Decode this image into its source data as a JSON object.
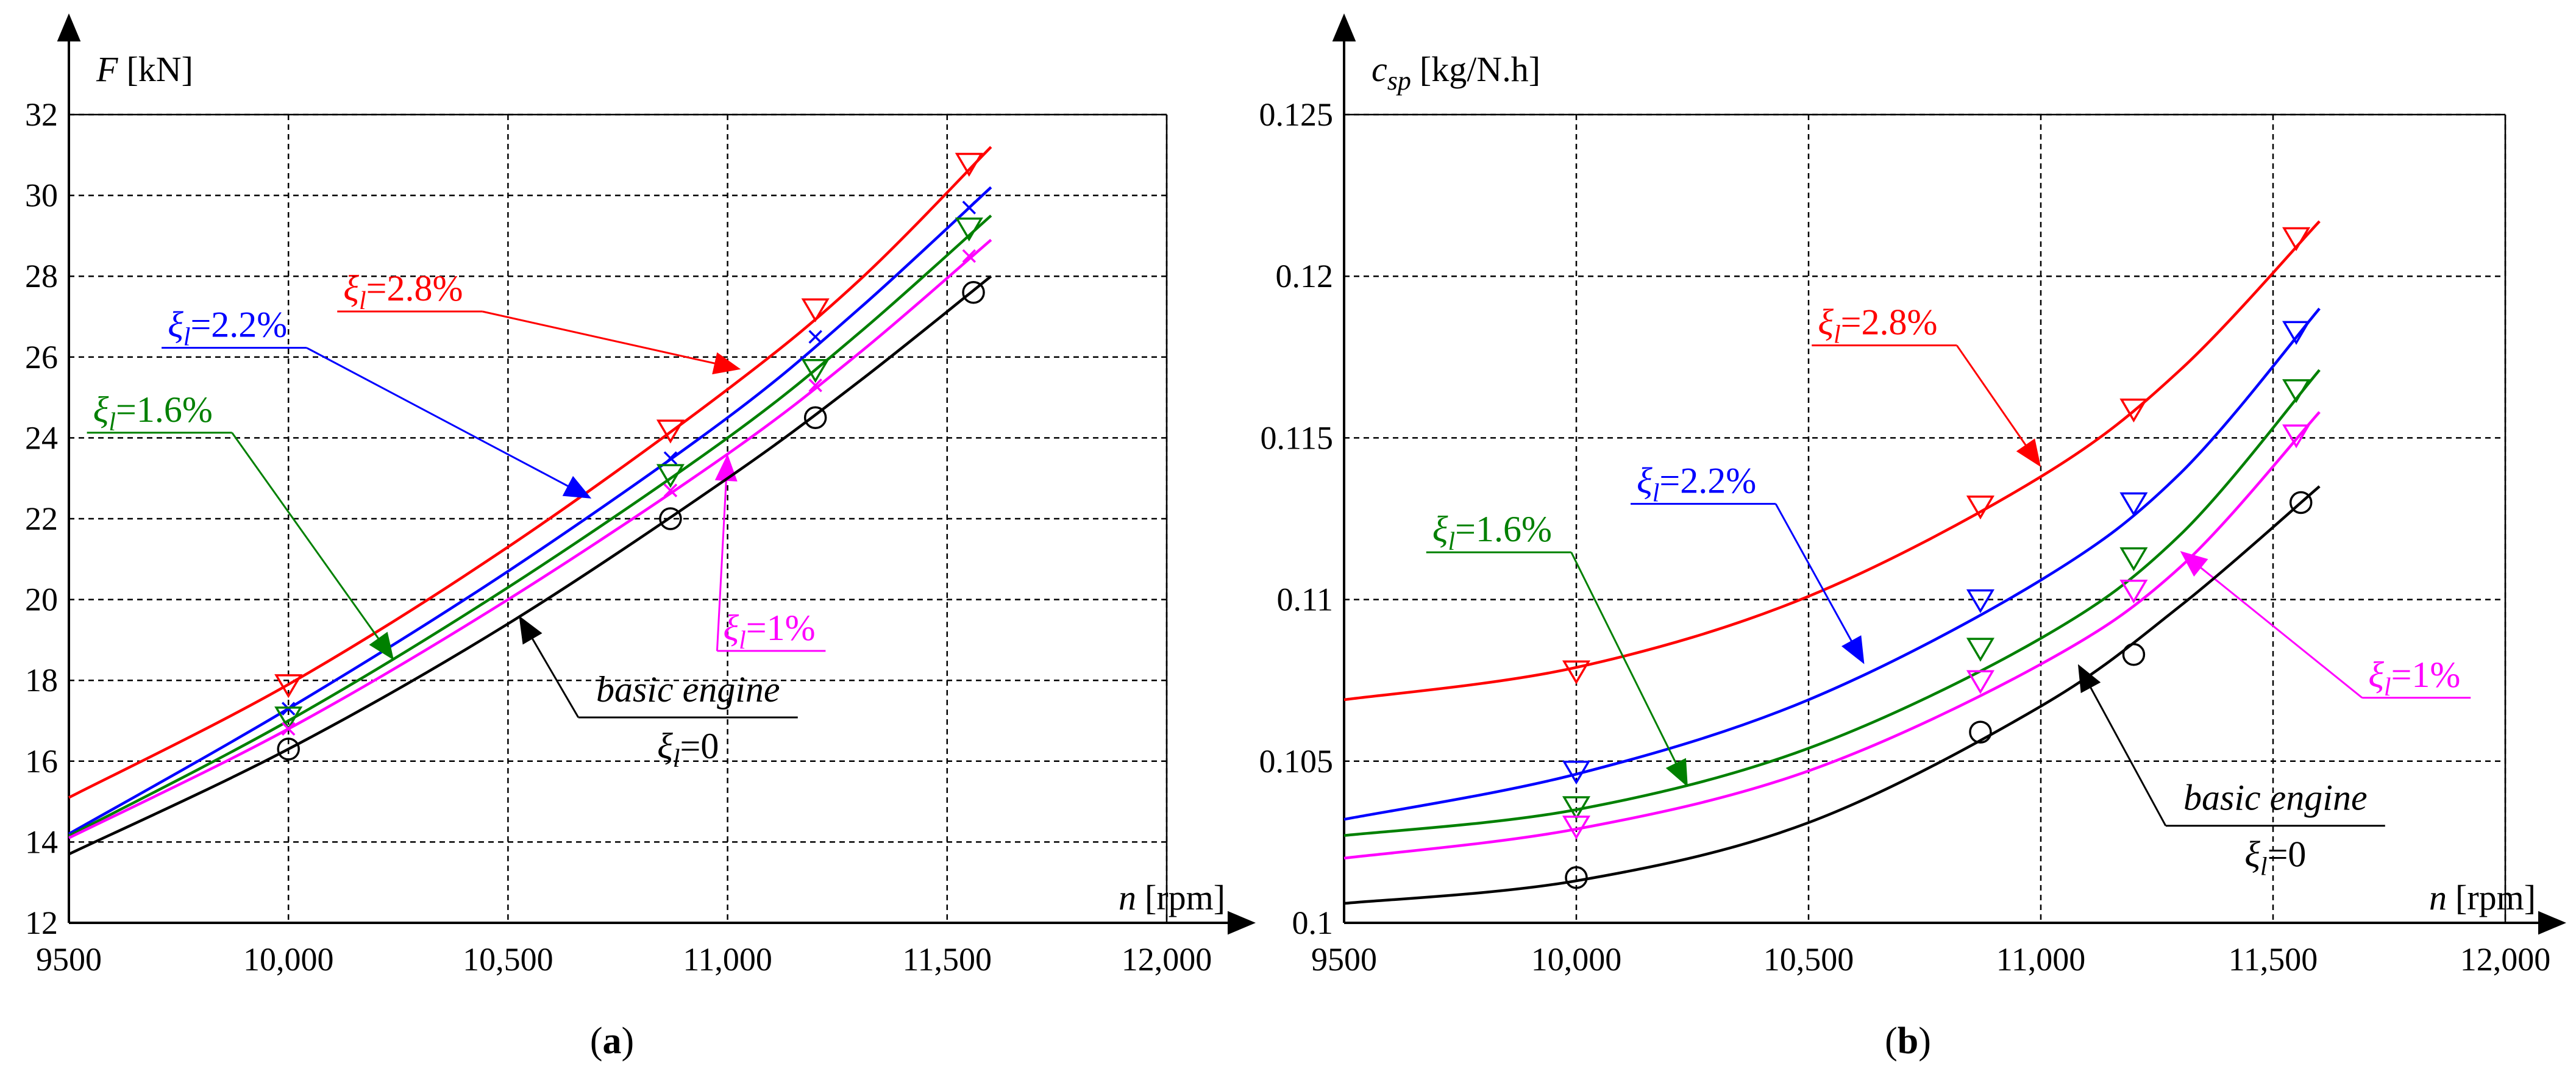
{
  "captions": [
    "(a)",
    "(b)"
  ],
  "chart_data": [
    {
      "type": "line",
      "panel": "a",
      "ylabel_symbol": "F",
      "ylabel_unit": "[kN]",
      "xlabel_symbol": "n",
      "xlabel_unit": "[rpm]",
      "x_ticks": [
        "9500",
        "10,000",
        "10,500",
        "11,000",
        "11,500",
        "12,000"
      ],
      "x_tick_values": [
        9500,
        10000,
        10500,
        11000,
        11500,
        12000
      ],
      "y_ticks": [
        "12",
        "14",
        "16",
        "18",
        "20",
        "22",
        "24",
        "26",
        "28",
        "30",
        "32"
      ],
      "y_tick_values": [
        12,
        14,
        16,
        18,
        20,
        22,
        24,
        26,
        28,
        30,
        32
      ],
      "xlim": [
        9500,
        12000
      ],
      "ylim": [
        12,
        32
      ],
      "grid": true,
      "series": [
        {
          "name": "ξl=2.8%",
          "sym": "ξ",
          "sub": "l",
          "val": "=2.8%",
          "color": "#ff0000",
          "marker": "triangle-down",
          "x": [
            9500,
            10000,
            10500,
            11000,
            11300,
            11600
          ],
          "y": [
            15.1,
            17.9,
            21.3,
            25.2,
            27.9,
            31.2
          ],
          "mx": [
            10000,
            10870,
            11200,
            11550
          ],
          "my": [
            17.9,
            24.2,
            27.2,
            30.8
          ],
          "label_at": [
            10125,
            27.4
          ],
          "arrow_to": [
            11030,
            25.7
          ],
          "leader": "right"
        },
        {
          "name": "ξl=2.2%",
          "sym": "ξ",
          "sub": "l",
          "val": "=2.2%",
          "color": "#0000ff",
          "marker": "cross",
          "x": [
            9500,
            10000,
            10500,
            11000,
            11300,
            11600
          ],
          "y": [
            14.2,
            17.3,
            20.7,
            24.5,
            27.2,
            30.2
          ],
          "mx": [
            10000,
            10870,
            11200,
            11550
          ],
          "my": [
            17.3,
            23.5,
            26.5,
            29.7
          ],
          "label_at": [
            9725,
            26.5
          ],
          "arrow_to": [
            10690,
            22.5
          ],
          "leader": "right"
        },
        {
          "name": "ξl=1.6%",
          "sym": "ξ",
          "sub": "l",
          "val": "=1.6%",
          "color": "#008000",
          "marker": "triangle-down",
          "x": [
            9500,
            10000,
            10500,
            11000,
            11300,
            11600
          ],
          "y": [
            14.15,
            17.0,
            20.3,
            24.0,
            26.6,
            29.5
          ],
          "mx": [
            10000,
            10870,
            11200,
            11550
          ],
          "my": [
            17.1,
            23.1,
            25.7,
            29.2
          ],
          "label_at": [
            9555,
            24.4
          ],
          "arrow_to": [
            10240,
            18.5
          ],
          "leader": "right"
        },
        {
          "name": "ξl=1%",
          "sym": "ξ",
          "sub": "l",
          "val": "=1%",
          "color": "#ff00ff",
          "marker": "cross",
          "x": [
            9500,
            10000,
            10500,
            11000,
            11300,
            11600
          ],
          "y": [
            14.1,
            16.8,
            20.0,
            23.6,
            26.1,
            28.9
          ],
          "mx": [
            10000,
            10870,
            11200,
            11550
          ],
          "my": [
            16.8,
            22.7,
            25.3,
            28.5
          ],
          "label_at": [
            10990,
            19.0
          ],
          "arrow_to": [
            11000,
            23.6
          ],
          "leader": "left"
        },
        {
          "name": "basic engine ξl=0",
          "sym": "ξ",
          "sub": "l",
          "val": "=0",
          "label_pre": "basic engine",
          "color": "#000000",
          "marker": "circle",
          "x": [
            9500,
            10000,
            10500,
            11000,
            11300,
            11600
          ],
          "y": [
            13.7,
            16.3,
            19.4,
            23.0,
            25.4,
            28.0
          ],
          "mx": [
            10000,
            10870,
            11200,
            11560
          ],
          "my": [
            16.3,
            22.0,
            24.5,
            27.6
          ],
          "label_at": [
            10910,
            16.6
          ],
          "arrow_to": [
            10525,
            19.6
          ],
          "leader": "left"
        }
      ]
    },
    {
      "type": "line",
      "panel": "b",
      "ylabel_symbol": "c",
      "ylabel_sub": "sp",
      "ylabel_unit": "[kg/N.h]",
      "xlabel_symbol": "n",
      "xlabel_unit": "[rpm]",
      "x_ticks": [
        "9500",
        "10,000",
        "10,500",
        "11,000",
        "11,500",
        "12,000"
      ],
      "x_tick_values": [
        9500,
        10000,
        10500,
        11000,
        11500,
        12000
      ],
      "y_ticks": [
        "0.1",
        "0.105",
        "0.11",
        "0.115",
        "0.12",
        "0.125"
      ],
      "y_tick_values": [
        0.1,
        0.105,
        0.11,
        0.115,
        0.12,
        0.125
      ],
      "xlim": [
        9500,
        12000
      ],
      "ylim": [
        0.1,
        0.125
      ],
      "grid": true,
      "series": [
        {
          "name": "ξl=2.8%",
          "sym": "ξ",
          "sub": "l",
          "val": "=2.8%",
          "color": "#ff0000",
          "marker": "triangle-down",
          "x": [
            9500,
            10000,
            10500,
            11000,
            11300,
            11600
          ],
          "y": [
            0.1069,
            0.1079,
            0.1101,
            0.1138,
            0.1171,
            0.1217
          ],
          "mx": [
            10000,
            10870,
            11200,
            11550
          ],
          "my": [
            0.1078,
            0.1129,
            0.1159,
            0.1212
          ],
          "label_at": [
            10520,
            0.1182
          ],
          "arrow_to": [
            11000,
            0.1141
          ],
          "leader": "right"
        },
        {
          "name": "ξl=2.2%",
          "sym": "ξ",
          "sub": "l",
          "val": "=2.2%",
          "color": "#0000ff",
          "marker": "triangle-down",
          "x": [
            9500,
            10000,
            10500,
            11000,
            11300,
            11600
          ],
          "y": [
            0.1032,
            0.1046,
            0.1069,
            0.1106,
            0.1139,
            0.119
          ],
          "mx": [
            10000,
            10870,
            11200,
            11550
          ],
          "my": [
            0.1047,
            0.11,
            0.113,
            0.1183
          ],
          "label_at": [
            10130,
            0.1133
          ],
          "arrow_to": [
            10620,
            0.108
          ],
          "leader": "right"
        },
        {
          "name": "ξl=1.6%",
          "sym": "ξ",
          "sub": "l",
          "val": "=1.6%",
          "color": "#008000",
          "marker": "triangle-down",
          "x": [
            9500,
            10000,
            10500,
            11000,
            11300,
            11600
          ],
          "y": [
            0.1027,
            0.1035,
            0.1054,
            0.1088,
            0.112,
            0.1171
          ],
          "mx": [
            10000,
            10870,
            11200,
            11550
          ],
          "my": [
            0.1036,
            0.1085,
            0.1113,
            0.1165
          ],
          "label_at": [
            9690,
            0.1118
          ],
          "arrow_to": [
            10240,
            0.1042
          ],
          "leader": "right"
        },
        {
          "name": "ξl=1%",
          "sym": "ξ",
          "sub": "l",
          "val": "=1%",
          "color": "#ff00ff",
          "marker": "triangle-down",
          "x": [
            9500,
            10000,
            10500,
            11000,
            11300,
            11600
          ],
          "y": [
            0.102,
            0.1029,
            0.1047,
            0.108,
            0.111,
            0.1158
          ],
          "mx": [
            10000,
            10870,
            11200,
            11550
          ],
          "my": [
            0.103,
            0.1075,
            0.1103,
            0.1151
          ],
          "label_at": [
            11705,
            0.1073
          ],
          "arrow_to": [
            11300,
            0.1115
          ],
          "leader": "left"
        },
        {
          "name": "basic engine ξl=0",
          "sym": "ξ",
          "sub": "l",
          "val": "=0",
          "label_pre": "basic engine",
          "color": "#000000",
          "marker": "circle",
          "x": [
            9500,
            10000,
            10500,
            11000,
            11300,
            11600
          ],
          "y": [
            0.1006,
            0.1013,
            0.1031,
            0.1067,
            0.1098,
            0.1135
          ],
          "mx": [
            10000,
            10870,
            11200,
            11560
          ],
          "my": [
            0.1014,
            0.1059,
            0.1083,
            0.113
          ],
          "label_at": [
            11505,
            0.1024
          ],
          "arrow_to": [
            11080,
            0.108
          ],
          "leader": "left"
        }
      ]
    }
  ]
}
